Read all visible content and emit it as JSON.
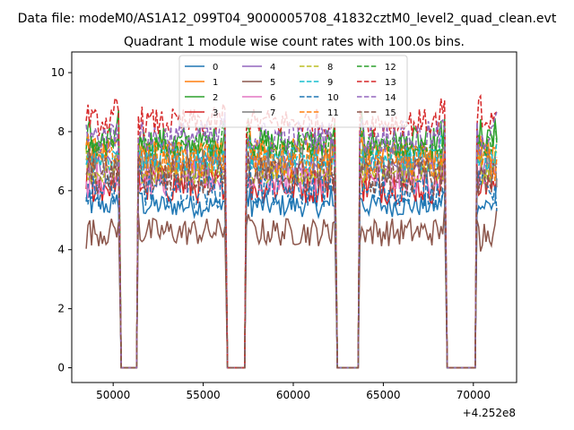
{
  "chart_data": {
    "type": "line",
    "suptitle": "Data file: modeM0/AS1A12_099T04_9000005708_41832cztM0_level2_quad_clean.evt",
    "title": "Quadrant 1 module wise count rates with 100.0s bins.",
    "xlabel": "",
    "ylabel": "",
    "x_offset_label": "+4.252e8",
    "x_offset": 425200000,
    "xlim": [
      47700,
      72400
    ],
    "ylim": [
      -0.5,
      10.7
    ],
    "xticks": [
      50000,
      55000,
      60000,
      65000,
      70000
    ],
    "xtick_labels": [
      "50000",
      "55000",
      "60000",
      "65000",
      "70000"
    ],
    "yticks": [
      0,
      2,
      4,
      6,
      8,
      10
    ],
    "ytick_labels": [
      "0",
      "2",
      "4",
      "6",
      "8",
      "10"
    ],
    "grid": false,
    "legend_position": "top-center",
    "legend_columns": 4,
    "bin_size_s": 100,
    "x_range": [
      48500,
      71300
    ],
    "segments": [
      {
        "on": [
          48500,
          50300
        ],
        "gap": [
          50300,
          51400
        ]
      },
      {
        "on": [
          51400,
          56200
        ],
        "gap": [
          56200,
          57400
        ]
      },
      {
        "on": [
          57400,
          62300
        ],
        "gap": [
          62300,
          63700
        ]
      },
      {
        "on": [
          63700,
          68400
        ],
        "gap": [
          68400,
          70200
        ]
      },
      {
        "on": [
          70200,
          71300
        ],
        "gap": null
      }
    ],
    "series": [
      {
        "name": "0",
        "color": "#1f77b4",
        "dash": "solid",
        "level": 5.5
      },
      {
        "name": "1",
        "color": "#ff7f0e",
        "dash": "solid",
        "level": 7.3
      },
      {
        "name": "2",
        "color": "#2ca02c",
        "dash": "solid",
        "level": 7.6
      },
      {
        "name": "3",
        "color": "#d62728",
        "dash": "solid",
        "level": 6.2
      },
      {
        "name": "4",
        "color": "#9467bd",
        "dash": "solid",
        "level": 6.8
      },
      {
        "name": "5",
        "color": "#8c564b",
        "dash": "solid",
        "level": 4.6
      },
      {
        "name": "6",
        "color": "#e377c2",
        "dash": "solid",
        "level": 6.4
      },
      {
        "name": "7",
        "color": "#7f7f7f",
        "dash": "solid",
        "level": 6.9
      },
      {
        "name": "8",
        "color": "#bcbd22",
        "dash": "dashed",
        "level": 6.6
      },
      {
        "name": "9",
        "color": "#17becf",
        "dash": "dashed",
        "level": 7.1
      },
      {
        "name": "10",
        "color": "#1f77b4",
        "dash": "dashed",
        "level": 6.0
      },
      {
        "name": "11",
        "color": "#ff7f0e",
        "dash": "dashed",
        "level": 7.0
      },
      {
        "name": "12",
        "color": "#2ca02c",
        "dash": "dashed",
        "level": 7.5
      },
      {
        "name": "13",
        "color": "#d62728",
        "dash": "dashed",
        "level": 8.3
      },
      {
        "name": "14",
        "color": "#9467bd",
        "dash": "dashed",
        "level": 7.8
      },
      {
        "name": "15",
        "color": "#8c564b",
        "dash": "dashed",
        "level": 6.5
      }
    ]
  }
}
